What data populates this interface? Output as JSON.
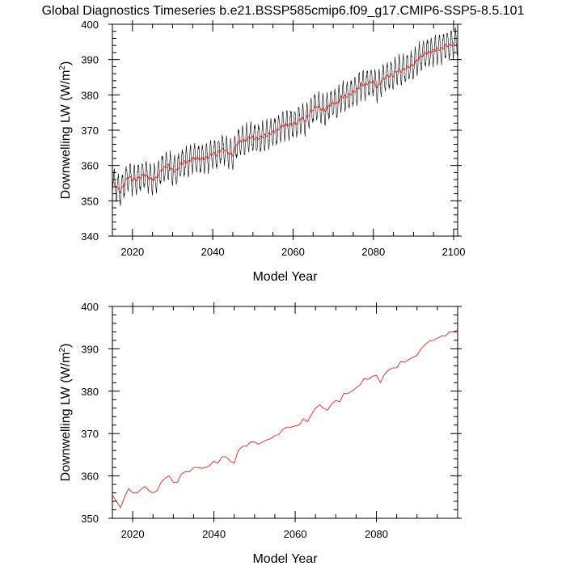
{
  "title": "Global Diagnostics Timeseries b.e21.BSSP585cmip6.f09_g17.CMIP6-SSP5-8.5.101",
  "chart_data": [
    {
      "type": "line",
      "xlabel": "Model Year",
      "ylabel_main": "Downwelling LW (W/m",
      "ylabel_sup": "2",
      "ylabel_close": ")",
      "xlim": [
        2015,
        2101
      ],
      "ylim": [
        340,
        400
      ],
      "xticks": [
        2020,
        2040,
        2060,
        2080,
        2100
      ],
      "yticks": [
        340,
        350,
        360,
        370,
        380,
        390,
        400
      ],
      "series": [
        {
          "kind": "monthly",
          "color": "#000000",
          "seasonal_amplitude": 3.8,
          "annual_x": [
            2015,
            2016,
            2017,
            2018,
            2019,
            2020,
            2021,
            2022,
            2023,
            2024,
            2025,
            2026,
            2027,
            2028,
            2029,
            2030,
            2031,
            2032,
            2033,
            2034,
            2035,
            2036,
            2037,
            2038,
            2039,
            2040,
            2041,
            2042,
            2043,
            2044,
            2045,
            2046,
            2047,
            2048,
            2049,
            2050,
            2051,
            2052,
            2053,
            2054,
            2055,
            2056,
            2057,
            2058,
            2059,
            2060,
            2061,
            2062,
            2063,
            2064,
            2065,
            2066,
            2067,
            2068,
            2069,
            2070,
            2071,
            2072,
            2073,
            2074,
            2075,
            2076,
            2077,
            2078,
            2079,
            2080,
            2081,
            2082,
            2083,
            2084,
            2085,
            2086,
            2087,
            2088,
            2089,
            2090,
            2091,
            2092,
            2093,
            2094,
            2095,
            2096,
            2097,
            2098,
            2099,
            2100
          ],
          "annual_y": [
            355.5,
            354.0,
            352.5,
            355.0,
            357.0,
            356.0,
            356.0,
            356.8,
            357.5,
            356.5,
            356.0,
            356.5,
            358.5,
            359.5,
            360.0,
            358.5,
            358.5,
            360.5,
            361.0,
            361.0,
            362.0,
            362.0,
            361.8,
            362.0,
            362.5,
            363.5,
            363.0,
            364.5,
            364.5,
            363.5,
            363.0,
            366.0,
            367.0,
            367.0,
            368.0,
            368.0,
            367.5,
            368.0,
            368.5,
            368.8,
            369.5,
            369.8,
            371.0,
            371.5,
            371.5,
            371.8,
            372.0,
            373.5,
            372.8,
            374.5,
            376.0,
            376.8,
            376.0,
            375.5,
            377.0,
            377.8,
            377.5,
            379.5,
            379.5,
            380.0,
            380.8,
            381.5,
            383.0,
            382.8,
            383.5,
            383.8,
            382.0,
            384.0,
            385.0,
            385.5,
            385.5,
            387.0,
            386.8,
            387.5,
            388.0,
            388.5,
            390.0,
            391.0,
            391.8,
            392.0,
            392.5,
            393.0,
            393.0,
            394.0,
            394.0,
            394.5
          ]
        },
        {
          "kind": "smoothed",
          "color": "#ff0000"
        }
      ]
    },
    {
      "type": "line",
      "xlabel": "Model Year",
      "ylabel_main": "Downwelling LW (W/m",
      "ylabel_sup": "2",
      "ylabel_close": ")",
      "xlim": [
        2015,
        2100
      ],
      "ylim": [
        350,
        400
      ],
      "xticks": [
        2020,
        2040,
        2060,
        2080
      ],
      "yticks": [
        350,
        360,
        370,
        380,
        390,
        400
      ],
      "series": [
        {
          "kind": "annual",
          "color": "#ff0000",
          "x": [
            2015,
            2016,
            2017,
            2018,
            2019,
            2020,
            2021,
            2022,
            2023,
            2024,
            2025,
            2026,
            2027,
            2028,
            2029,
            2030,
            2031,
            2032,
            2033,
            2034,
            2035,
            2036,
            2037,
            2038,
            2039,
            2040,
            2041,
            2042,
            2043,
            2044,
            2045,
            2046,
            2047,
            2048,
            2049,
            2050,
            2051,
            2052,
            2053,
            2054,
            2055,
            2056,
            2057,
            2058,
            2059,
            2060,
            2061,
            2062,
            2063,
            2064,
            2065,
            2066,
            2067,
            2068,
            2069,
            2070,
            2071,
            2072,
            2073,
            2074,
            2075,
            2076,
            2077,
            2078,
            2079,
            2080,
            2081,
            2082,
            2083,
            2084,
            2085,
            2086,
            2087,
            2088,
            2089,
            2090,
            2091,
            2092,
            2093,
            2094,
            2095,
            2096,
            2097,
            2098,
            2099,
            2100
          ],
          "y": [
            355.5,
            354.0,
            352.5,
            355.0,
            357.0,
            356.0,
            356.0,
            356.8,
            357.5,
            356.5,
            356.0,
            356.5,
            358.5,
            359.5,
            360.0,
            358.5,
            358.5,
            360.5,
            361.0,
            361.0,
            362.0,
            362.0,
            361.8,
            362.0,
            362.5,
            363.5,
            363.0,
            364.5,
            364.5,
            363.5,
            363.0,
            366.0,
            367.0,
            367.0,
            368.0,
            368.0,
            367.5,
            368.0,
            368.5,
            368.8,
            369.5,
            369.8,
            371.0,
            371.5,
            371.5,
            371.8,
            372.0,
            373.5,
            372.8,
            374.5,
            376.0,
            376.8,
            376.0,
            375.5,
            377.0,
            377.8,
            377.5,
            379.5,
            379.5,
            380.0,
            380.8,
            381.5,
            383.0,
            382.8,
            383.5,
            383.8,
            382.0,
            384.0,
            385.0,
            385.5,
            385.5,
            387.0,
            386.8,
            387.5,
            388.0,
            388.5,
            390.0,
            391.0,
            391.8,
            392.0,
            392.5,
            393.0,
            393.0,
            394.0,
            394.0,
            394.5
          ]
        }
      ]
    }
  ]
}
